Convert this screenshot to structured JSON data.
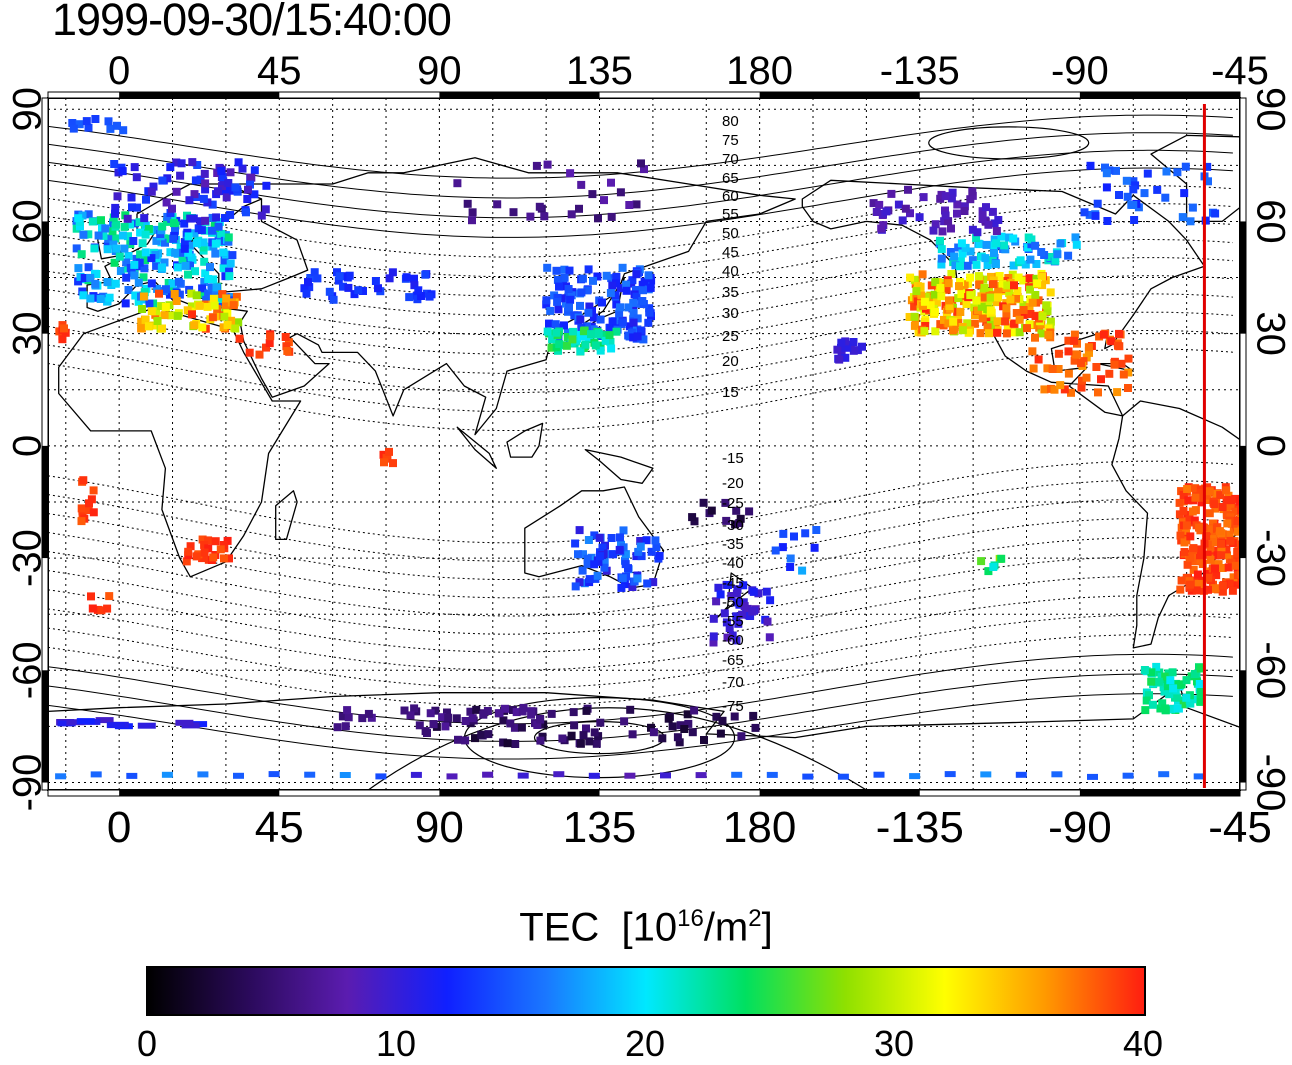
{
  "timestamp": "1999-09-30/15:40:00",
  "map": {
    "projection": "cylindrical",
    "lon_top_ticks": [
      "0",
      "45",
      "90",
      "135",
      "180",
      "-135",
      "-90",
      "-45"
    ],
    "lon_bottom_ticks": [
      "0",
      "45",
      "90",
      "135",
      "180",
      "-135",
      "-90",
      "-45"
    ],
    "lat_left_ticks": [
      "90",
      "60",
      "30",
      "0",
      "-30",
      "-60",
      "-90"
    ],
    "lat_right_ticks": [
      "90",
      "60",
      "30",
      "0",
      "-30",
      "-60",
      "-90"
    ],
    "lon_range": [
      -20,
      315
    ],
    "lat_range": [
      -92,
      93
    ],
    "grid": "dotted",
    "geomag_contour_labels": [
      "80",
      "75",
      "70",
      "65",
      "60",
      "55",
      "50",
      "45",
      "40",
      "35",
      "30",
      "25",
      "20",
      "15",
      "-15",
      "-20",
      "-25",
      "-30",
      "-35",
      "-40",
      "-45",
      "-50",
      "-55",
      "-60",
      "-65",
      "-70",
      "-75"
    ],
    "meridian_marker": {
      "lon": -55,
      "color": "#e00000"
    }
  },
  "colorbar": {
    "title": "TEC",
    "unit_base": "[10",
    "unit_exp": "16",
    "unit_mid": "/m",
    "unit_exp2": "2",
    "unit_end": "]",
    "ticks": [
      "0",
      "10",
      "20",
      "30",
      "40"
    ],
    "range": [
      0,
      40
    ],
    "colormap": [
      "#000000",
      "#2a0a5a",
      "#5b1cb0",
      "#1020ff",
      "#1a78ff",
      "#00e8ff",
      "#00e060",
      "#8fe000",
      "#ffff00",
      "#ff9a00",
      "#ff1e10"
    ]
  }
}
